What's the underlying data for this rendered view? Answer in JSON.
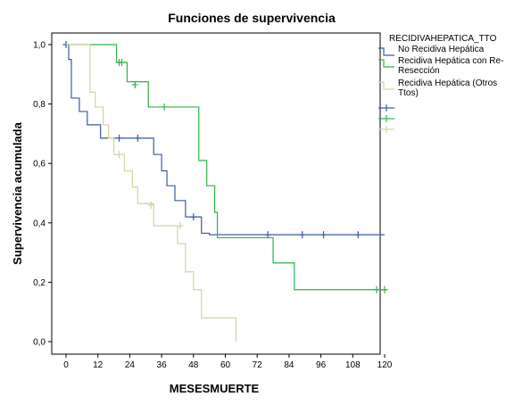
{
  "chart_data": {
    "type": "line",
    "step": true,
    "title": "Funciones de supervivencia",
    "xlabel": "MESESMUERTE",
    "ylabel": "Supervivencia acumulada",
    "xlim": [
      -5,
      120
    ],
    "ylim": [
      0,
      1
    ],
    "x_ticks": [
      0,
      12,
      24,
      36,
      48,
      60,
      72,
      84,
      96,
      108,
      120
    ],
    "y_ticks": [
      0,
      0.2,
      0.4,
      0.6,
      0.8,
      1.0
    ],
    "y_tick_labels": [
      "0,0",
      "0,2",
      "0,4",
      "0,6",
      "0,8",
      "1,0"
    ],
    "grid": false,
    "legend": {
      "title": "RECIDIVAHEPATICA_TTO",
      "placement": "right",
      "entries": [
        {
          "label_lines": [
            "No Recidiva Hepática"
          ],
          "color": "#3c5aa8",
          "kind": "line"
        },
        {
          "label_lines": [
            "Recidiva Hepática con Re-",
            "Resección"
          ],
          "color": "#2db34a",
          "kind": "line"
        },
        {
          "label_lines": [
            "Recidiva Hepática (Otros",
            "Ttos)"
          ],
          "color": "#d6d2a2",
          "kind": "line"
        },
        {
          "label_lines": [],
          "color": "#3c5aa8",
          "kind": "censor"
        },
        {
          "label_lines": [],
          "color": "#2db34a",
          "kind": "censor"
        },
        {
          "label_lines": [],
          "color": "#d6d2a2",
          "kind": "censor"
        }
      ]
    },
    "series": [
      {
        "name": "No Recidiva Hepática",
        "color": "#3c5aa8",
        "steps": [
          [
            0,
            1.0
          ],
          [
            1,
            0.95
          ],
          [
            2,
            0.82
          ],
          [
            5,
            0.775
          ],
          [
            8,
            0.73
          ],
          [
            13,
            0.685
          ],
          [
            33,
            0.63
          ],
          [
            36,
            0.575
          ],
          [
            38,
            0.525
          ],
          [
            41,
            0.475
          ],
          [
            45,
            0.42
          ],
          [
            51,
            0.365
          ],
          [
            54,
            0.36
          ],
          [
            120,
            0.36
          ]
        ],
        "censored": [
          [
            0,
            1.0
          ],
          [
            20,
            0.685
          ],
          [
            27,
            0.685
          ],
          [
            48,
            0.42
          ],
          [
            76,
            0.36
          ],
          [
            89,
            0.36
          ],
          [
            97,
            0.36
          ],
          [
            110,
            0.36
          ]
        ]
      },
      {
        "name": "Recidiva Hepática con Re-Resección",
        "color": "#2db34a",
        "steps": [
          [
            0,
            1.0
          ],
          [
            19,
            0.94
          ],
          [
            23,
            0.875
          ],
          [
            31,
            0.79
          ],
          [
            50,
            0.61
          ],
          [
            53,
            0.525
          ],
          [
            56,
            0.435
          ],
          [
            57,
            0.35
          ],
          [
            77,
            0.35
          ],
          [
            78,
            0.265
          ],
          [
            85,
            0.265
          ],
          [
            86,
            0.175
          ],
          [
            120,
            0.175
          ]
        ],
        "censored": [
          [
            20,
            0.94
          ],
          [
            21,
            0.94
          ],
          [
            26,
            0.865
          ],
          [
            37,
            0.79
          ],
          [
            117,
            0.175
          ],
          [
            120,
            0.175
          ]
        ]
      },
      {
        "name": "Recidiva Hepática (Otros Ttos)",
        "color": "#d6d2a2",
        "steps": [
          [
            0,
            1.0
          ],
          [
            9,
            0.84
          ],
          [
            11,
            0.79
          ],
          [
            14,
            0.73
          ],
          [
            16,
            0.685
          ],
          [
            18,
            0.63
          ],
          [
            22,
            0.575
          ],
          [
            25,
            0.52
          ],
          [
            27,
            0.465
          ],
          [
            33,
            0.39
          ],
          [
            42,
            0.33
          ],
          [
            45,
            0.235
          ],
          [
            48,
            0.175
          ],
          [
            51,
            0.08
          ],
          [
            64,
            0.08
          ],
          [
            64,
            0.0
          ]
        ],
        "censored": [
          [
            20,
            0.63
          ],
          [
            32,
            0.46
          ],
          [
            43,
            0.39
          ]
        ]
      }
    ]
  }
}
